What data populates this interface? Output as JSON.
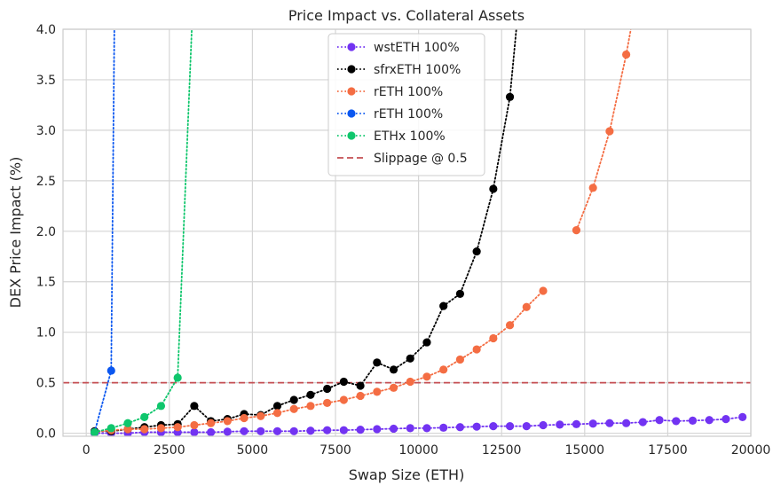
{
  "chart_data": {
    "type": "line",
    "title": "Price Impact vs. Collateral Assets",
    "xlabel": "Swap Size (ETH)",
    "ylabel": "DEX Price Impact (%)",
    "xlim": [
      -700,
      20000
    ],
    "ylim": [
      -0.03,
      4.0
    ],
    "xticks": [
      0,
      2500,
      5000,
      7500,
      10000,
      12500,
      15000,
      17500,
      20000
    ],
    "xtick_labels": [
      "0",
      "2500",
      "5000",
      "7500",
      "10000",
      "12500",
      "15000",
      "17500",
      "20000"
    ],
    "yticks": [
      0.0,
      0.5,
      1.0,
      1.5,
      2.0,
      2.5,
      3.0,
      3.5,
      4.0
    ],
    "ytick_labels": [
      "0.0",
      "0.5",
      "1.0",
      "1.5",
      "2.0",
      "2.5",
      "3.0",
      "3.5",
      "4.0"
    ],
    "grid": true,
    "legend_position": "top-center",
    "series": [
      {
        "name": "wstETH 100%",
        "color": "#7233f2",
        "style": "dotted",
        "markers": true,
        "x": [
          250,
          750,
          1250,
          1750,
          2250,
          2750,
          3250,
          3750,
          4250,
          4750,
          5250,
          5750,
          6250,
          6750,
          7250,
          7750,
          8250,
          8750,
          9250,
          9750,
          10250,
          10750,
          11250,
          11750,
          12250,
          12750,
          13250,
          13750,
          14250,
          14750,
          15250,
          15750,
          16250,
          16750,
          17250,
          17750,
          18250,
          18750,
          19250,
          19750
        ],
        "y": [
          0.0,
          0.0,
          0.0,
          0.01,
          0.01,
          0.01,
          0.01,
          0.01,
          0.015,
          0.02,
          0.02,
          0.02,
          0.02,
          0.025,
          0.03,
          0.03,
          0.035,
          0.04,
          0.045,
          0.05,
          0.05,
          0.055,
          0.06,
          0.065,
          0.07,
          0.07,
          0.07,
          0.08,
          0.085,
          0.09,
          0.095,
          0.1,
          0.1,
          0.11,
          0.13,
          0.12,
          0.125,
          0.13,
          0.14,
          0.16
        ]
      },
      {
        "name": "sfrxETH 100%",
        "color": "#000000",
        "style": "dotted",
        "markers": true,
        "x": [
          250,
          750,
          1250,
          1750,
          2250,
          2750,
          3250,
          3750,
          4250,
          4750,
          5250,
          5750,
          6250,
          6750,
          7250,
          7750,
          8250,
          8750,
          9250,
          9750,
          10250,
          10750,
          11250,
          11750,
          12250,
          12750,
          13000
        ],
        "y": [
          0.02,
          0.02,
          0.04,
          0.06,
          0.08,
          0.09,
          0.27,
          0.12,
          0.14,
          0.19,
          0.18,
          0.27,
          0.33,
          0.38,
          0.44,
          0.51,
          0.47,
          0.7,
          0.63,
          0.74,
          0.9,
          1.26,
          1.38,
          1.8,
          2.42,
          3.33,
          4.2
        ]
      },
      {
        "name": "rETH 100%",
        "color": "#f46d43",
        "style": "dotted",
        "markers": true,
        "x": [
          250,
          750,
          1250,
          1750,
          2250,
          2750,
          3250,
          3750,
          4250,
          4750,
          5250,
          5750,
          6250,
          6750,
          7250,
          7750,
          8250,
          8750,
          9250,
          9750,
          10250,
          10750,
          11250,
          11750,
          12250,
          12750,
          13250,
          13750,
          null,
          14750,
          15250,
          15750,
          16250,
          16500
        ],
        "y": [
          0.01,
          0.03,
          0.04,
          0.04,
          0.05,
          0.06,
          0.08,
          0.1,
          0.12,
          0.15,
          0.17,
          0.2,
          0.24,
          0.27,
          0.3,
          0.33,
          0.37,
          0.41,
          0.45,
          0.51,
          0.56,
          0.63,
          0.73,
          0.83,
          0.94,
          1.07,
          1.25,
          1.41,
          null,
          2.01,
          2.43,
          2.99,
          3.75,
          4.2
        ]
      },
      {
        "name": "rETH 100%",
        "color": "#0b57f0",
        "style": "dotted",
        "markers": true,
        "x": [
          250,
          750,
          850
        ],
        "y": [
          0.01,
          0.62,
          4.2
        ]
      },
      {
        "name": "ETHx 100%",
        "color": "#0fc66c",
        "style": "dotted",
        "markers": true,
        "x": [
          250,
          750,
          1250,
          1750,
          2250,
          2750,
          3200
        ],
        "y": [
          0.01,
          0.05,
          0.1,
          0.16,
          0.27,
          0.55,
          4.2
        ]
      }
    ],
    "reference_lines": [
      {
        "name": "Slippage @ 0.5",
        "y": 0.5,
        "color": "#c44e52",
        "style": "dashed"
      }
    ]
  }
}
